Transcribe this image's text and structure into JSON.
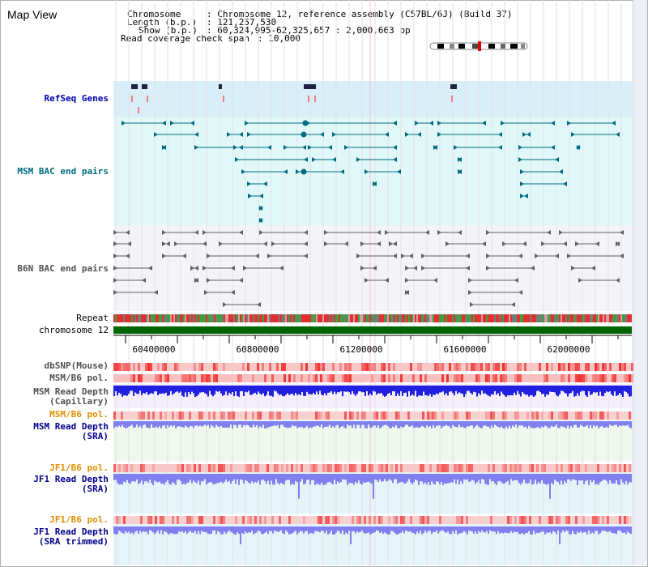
{
  "title": "Map View",
  "info": {
    "chromosome_key": "Chromosome",
    "chromosome_val": ": Chromosome 12, reference assembly (C57BL/6J) (Build 37)",
    "length_key": "Length (b.p.)",
    "length_val": ": 121,257,530",
    "show_key": "Show (b.p.)",
    "show_val": ": 60,324,995-62,325,657 : 2,000,663 bp",
    "coverage_key": "Read coverage check span",
    "coverage_val": ": 10,000"
  },
  "tracks": {
    "refseq": "RefSeq Genes",
    "msm_bac": "MSM BAC end pairs",
    "b6n_bac": "B6N BAC end pairs",
    "repeat": "Repeat",
    "chromosome": "chromosome 12",
    "dbsnp": "dbSNP(Mouse)",
    "msm_b6_pol": "MSM/B6 pol.",
    "msm_depth_cap_1": "MSM Read Depth",
    "msm_depth_cap_2": "(Capillary)",
    "msm_b6_pol2": "MSM/B6 pol.",
    "msm_depth_sra_1": "MSM Read Depth",
    "msm_depth_sra_2": "(SRA)",
    "jf1_b6_pol": "JF1/B6 pol.",
    "jf1_depth_sra_1": "JF1 Read Depth",
    "jf1_depth_sra_2": "(SRA)",
    "jf1_b6_pol2": "JF1/B6 pol.",
    "jf1_depth_trim_1": "JF1 Read Depth",
    "jf1_depth_trim_2": "(SRA trimmed)"
  },
  "axis": {
    "ticks": [
      "60400000",
      "60800000",
      "61200000",
      "61600000",
      "62000000"
    ]
  },
  "colors": {
    "refseq_bg": "#d8eef8",
    "msm_bg": "#e0f8f8",
    "b6n_bg": "#f4f4f8",
    "msm_feature": "#006b80",
    "b6n_feature": "#606060",
    "chromosome_bar": "#006400",
    "depth_blue": "#2020e0",
    "depth_light": "#8080f0",
    "pol_red": "#f03030",
    "pol_pink": "#f8b0b0"
  }
}
